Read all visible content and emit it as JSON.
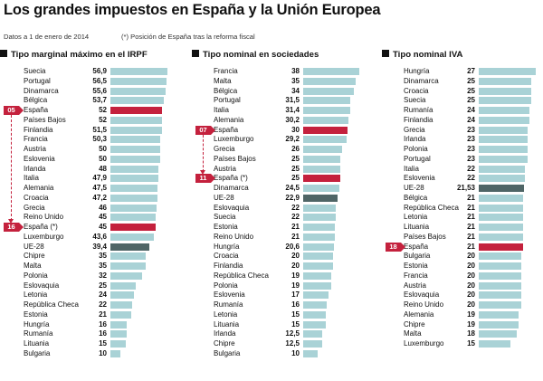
{
  "header": {
    "title": "Los grandes impuestos en España y la Unión Europea",
    "subtitle": "Datos a 1 de enero de 2014",
    "footnote": "(*) Posición de España tras la reforma fiscal"
  },
  "colors": {
    "bar": "#a9d2d6",
    "spain": "#c4213d",
    "eu": "#4f6566"
  },
  "chart_data": [
    {
      "type": "bar",
      "orientation": "horizontal",
      "title": "Tipo marginal máximo en el IRPF",
      "categories": [
        "Suecia",
        "Portugal",
        "Dinamarca",
        "Bélgica",
        "España",
        "Países Bajos",
        "Finlandia",
        "Francia",
        "Austria",
        "Eslovenia",
        "Irlanda",
        "Italia",
        "Alemania",
        "Croacia",
        "Grecia",
        "Reino Unido",
        "España (*)",
        "Luxemburgo",
        "UE-28",
        "Chipre",
        "Malta",
        "Polonia",
        "Eslovaquia",
        "Letonia",
        "República Checa",
        "Estonia",
        "Hungría",
        "Rumanía",
        "Lituania",
        "Bulgaria"
      ],
      "values": [
        56.9,
        56.5,
        55.6,
        53.7,
        52,
        52,
        51.5,
        50.3,
        50,
        50,
        48,
        47.9,
        47.5,
        47.2,
        46,
        45,
        45,
        43.6,
        39.4,
        35,
        35,
        32,
        25,
        24,
        22,
        21,
        16,
        16,
        15,
        10
      ],
      "value_labels": [
        "56,9",
        "56,5",
        "55,6",
        "53,7",
        "52",
        "52",
        "51,5",
        "50,3",
        "50",
        "50",
        "48",
        "47,9",
        "47,5",
        "47,2",
        "46",
        "45",
        "45",
        "43,6",
        "39,4",
        "35",
        "35",
        "32",
        "25",
        "24",
        "22",
        "21",
        "16",
        "16",
        "15",
        "10"
      ],
      "highlight": [
        4,
        16
      ],
      "eu_index": 18,
      "markers": [
        {
          "label": "05",
          "row": 4
        },
        {
          "label": "16",
          "row": 16
        }
      ],
      "xlim": [
        0,
        60
      ]
    },
    {
      "type": "bar",
      "orientation": "horizontal",
      "title": "Tipo nominal en sociedades",
      "categories": [
        "Francia",
        "Malta",
        "Bélgica",
        "Portugal",
        "Italia",
        "Alemania",
        "España",
        "Luxemburgo",
        "Grecia",
        "Países Bajos",
        "Austria",
        "España (*)",
        "Dinamarca",
        "UE-28",
        "Eslovaquia",
        "Suecia",
        "Estonia",
        "Reino Unido",
        "Hungría",
        "Croacia",
        "Finlandia",
        "República Checa",
        "Polonia",
        "Eslovenia",
        "Rumanía",
        "Letonia",
        "Lituania",
        "Irlanda",
        "Chipre",
        "Bulgaria"
      ],
      "values": [
        38,
        35,
        34,
        31.5,
        31.4,
        30.2,
        30,
        29.2,
        26,
        25,
        25,
        25,
        24.5,
        22.9,
        22,
        22,
        21,
        21,
        20.6,
        20,
        20,
        19,
        19,
        17,
        16,
        15,
        15,
        12.5,
        12.5,
        10
      ],
      "value_labels": [
        "38",
        "35",
        "34",
        "31,5",
        "31,4",
        "30,2",
        "30",
        "29,2",
        "26",
        "25",
        "25",
        "25",
        "24,5",
        "22,9",
        "22",
        "22",
        "21",
        "21",
        "20,6",
        "20",
        "20",
        "19",
        "19",
        "17",
        "16",
        "15",
        "15",
        "12,5",
        "12,5",
        "10"
      ],
      "highlight": [
        6,
        11
      ],
      "eu_index": 13,
      "markers": [
        {
          "label": "07",
          "row": 6
        },
        {
          "label": "11",
          "row": 11
        }
      ],
      "xlim": [
        0,
        42
      ]
    },
    {
      "type": "bar",
      "orientation": "horizontal",
      "title": "Tipo nominal IVA",
      "categories": [
        "Hungría",
        "Dinamarca",
        "Croacia",
        "Suecia",
        "Rumanía",
        "Finlandia",
        "Grecia",
        "Irlanda",
        "Polonia",
        "Portugal",
        "Italia",
        "Eslovenia",
        "UE-28",
        "Bélgica",
        "República Checa",
        "Letonia",
        "Lituania",
        "Países Bajos",
        "España",
        "Bulgaria",
        "Estonia",
        "Francia",
        "Austria",
        "Eslovaquia",
        "Reino Unido",
        "Alemania",
        "Chipre",
        "Malta",
        "Luxemburgo"
      ],
      "values": [
        27,
        25,
        25,
        25,
        24,
        24,
        23,
        23,
        23,
        23,
        22,
        22,
        21.53,
        21,
        21,
        21,
        21,
        21,
        21,
        20,
        20,
        20,
        20,
        20,
        20,
        19,
        19,
        18,
        15
      ],
      "value_labels": [
        "27",
        "25",
        "25",
        "25",
        "24",
        "24",
        "23",
        "23",
        "23",
        "23",
        "22",
        "22",
        "21,53",
        "21",
        "21",
        "21",
        "21",
        "21",
        "21",
        "20",
        "20",
        "20",
        "20",
        "20",
        "20",
        "19",
        "19",
        "18",
        "15"
      ],
      "highlight": [
        18
      ],
      "eu_index": 12,
      "markers": [
        {
          "label": "18",
          "row": 18
        }
      ],
      "xlim": [
        0,
        30
      ]
    }
  ]
}
